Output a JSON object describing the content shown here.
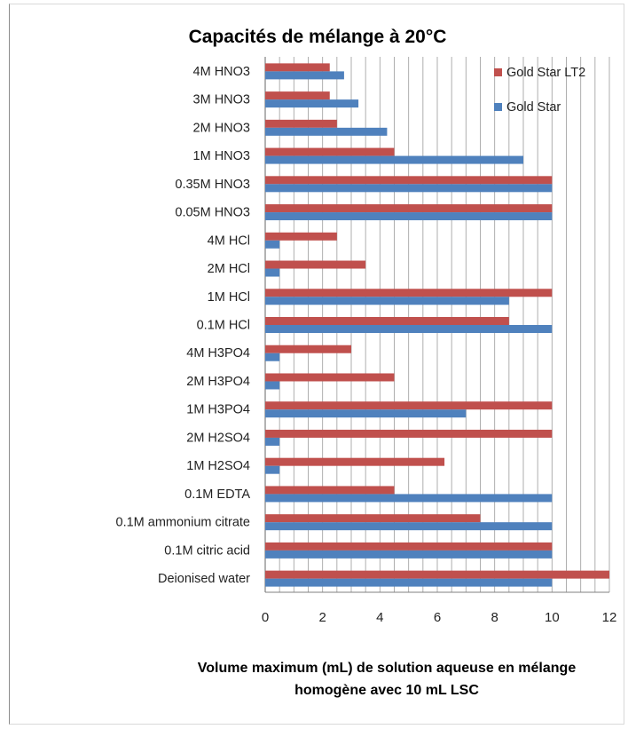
{
  "chart_data": {
    "type": "bar",
    "orientation": "horizontal",
    "title": "Capacités de mélange à 20°C",
    "xlabel_lines": [
      "Volume maximum (mL) de solution aqueuse en mélange",
      "homogène  avec 10 mL LSC"
    ],
    "ylabel": "",
    "xlim": [
      0,
      12
    ],
    "xticks": [
      0,
      2,
      4,
      6,
      8,
      10,
      12
    ],
    "grid": "vertical",
    "legend_position": "top-right",
    "categories": [
      "4M HNO3",
      "3M HNO3",
      "2M HNO3",
      "1M HNO3",
      "0.35M HNO3",
      "0.05M HNO3",
      "4M HCl",
      "2M HCl",
      "1M HCl",
      "0.1M HCl",
      "4M H3PO4",
      "2M H3PO4",
      "1M H3PO4",
      "2M H2SO4",
      "1M H2SO4",
      "0.1M EDTA",
      "0.1M ammonium citrate",
      "0.1M citric acid",
      "Deionised water"
    ],
    "series": [
      {
        "name": "Gold Star LT2",
        "color": "#c0504d",
        "values": [
          2.25,
          2.25,
          2.5,
          4.5,
          10,
          10,
          2.5,
          3.5,
          10,
          8.5,
          3.0,
          4.5,
          10,
          10,
          6.25,
          4.5,
          7.5,
          10,
          12
        ]
      },
      {
        "name": "Gold Star",
        "color": "#4f81bd",
        "values": [
          2.75,
          3.25,
          4.25,
          9.0,
          10,
          10,
          0.5,
          0.5,
          8.5,
          10,
          0.5,
          0.5,
          7.0,
          0.5,
          0.5,
          10,
          10,
          10,
          10
        ]
      }
    ]
  }
}
